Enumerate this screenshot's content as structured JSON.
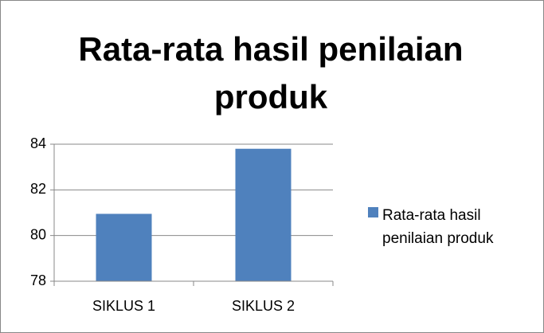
{
  "chart_data": {
    "type": "bar",
    "title": "Rata-rata hasil penilaian produk",
    "categories": [
      "SIKLUS 1",
      "SIKLUS 2"
    ],
    "series": [
      {
        "name": "Rata-rata hasil penilaian produk",
        "color": "#4f81bd",
        "values": [
          80.95,
          83.8
        ]
      }
    ],
    "ylim": [
      78,
      84
    ],
    "yticks": [
      78,
      80,
      82,
      84
    ],
    "grid": true,
    "legend": "right"
  }
}
